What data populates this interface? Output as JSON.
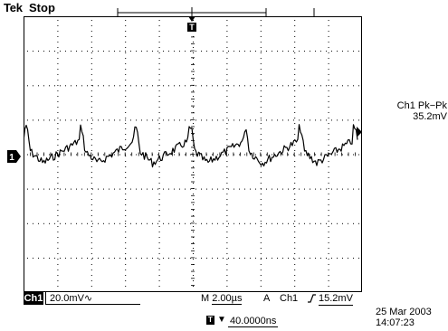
{
  "header": {
    "brand": "Tek",
    "status": "Stop"
  },
  "measurement": {
    "source": "Ch1 Pk−Pk",
    "value": "35.2mV"
  },
  "bottom_bar": {
    "channel": "Ch1",
    "scale": "20.0mV",
    "coupling_icon": "∿",
    "timebase_prefix": "M",
    "timebase": "2.00µs",
    "trigger_mode": "A",
    "trigger_source": "Ch1",
    "trigger_slope_icon": "rising-edge-icon",
    "trigger_level": "15.2mV"
  },
  "position": {
    "arrow": "▼",
    "value": "40.0000ns"
  },
  "datetime": {
    "date": "25 Mar  2003",
    "time": "14:07:23"
  },
  "markers": {
    "channel_ground": "1",
    "trigger_pos": "T"
  },
  "colors": {
    "trace": "#000000",
    "grid_dots": "#000000",
    "background": "#ffffff"
  }
}
